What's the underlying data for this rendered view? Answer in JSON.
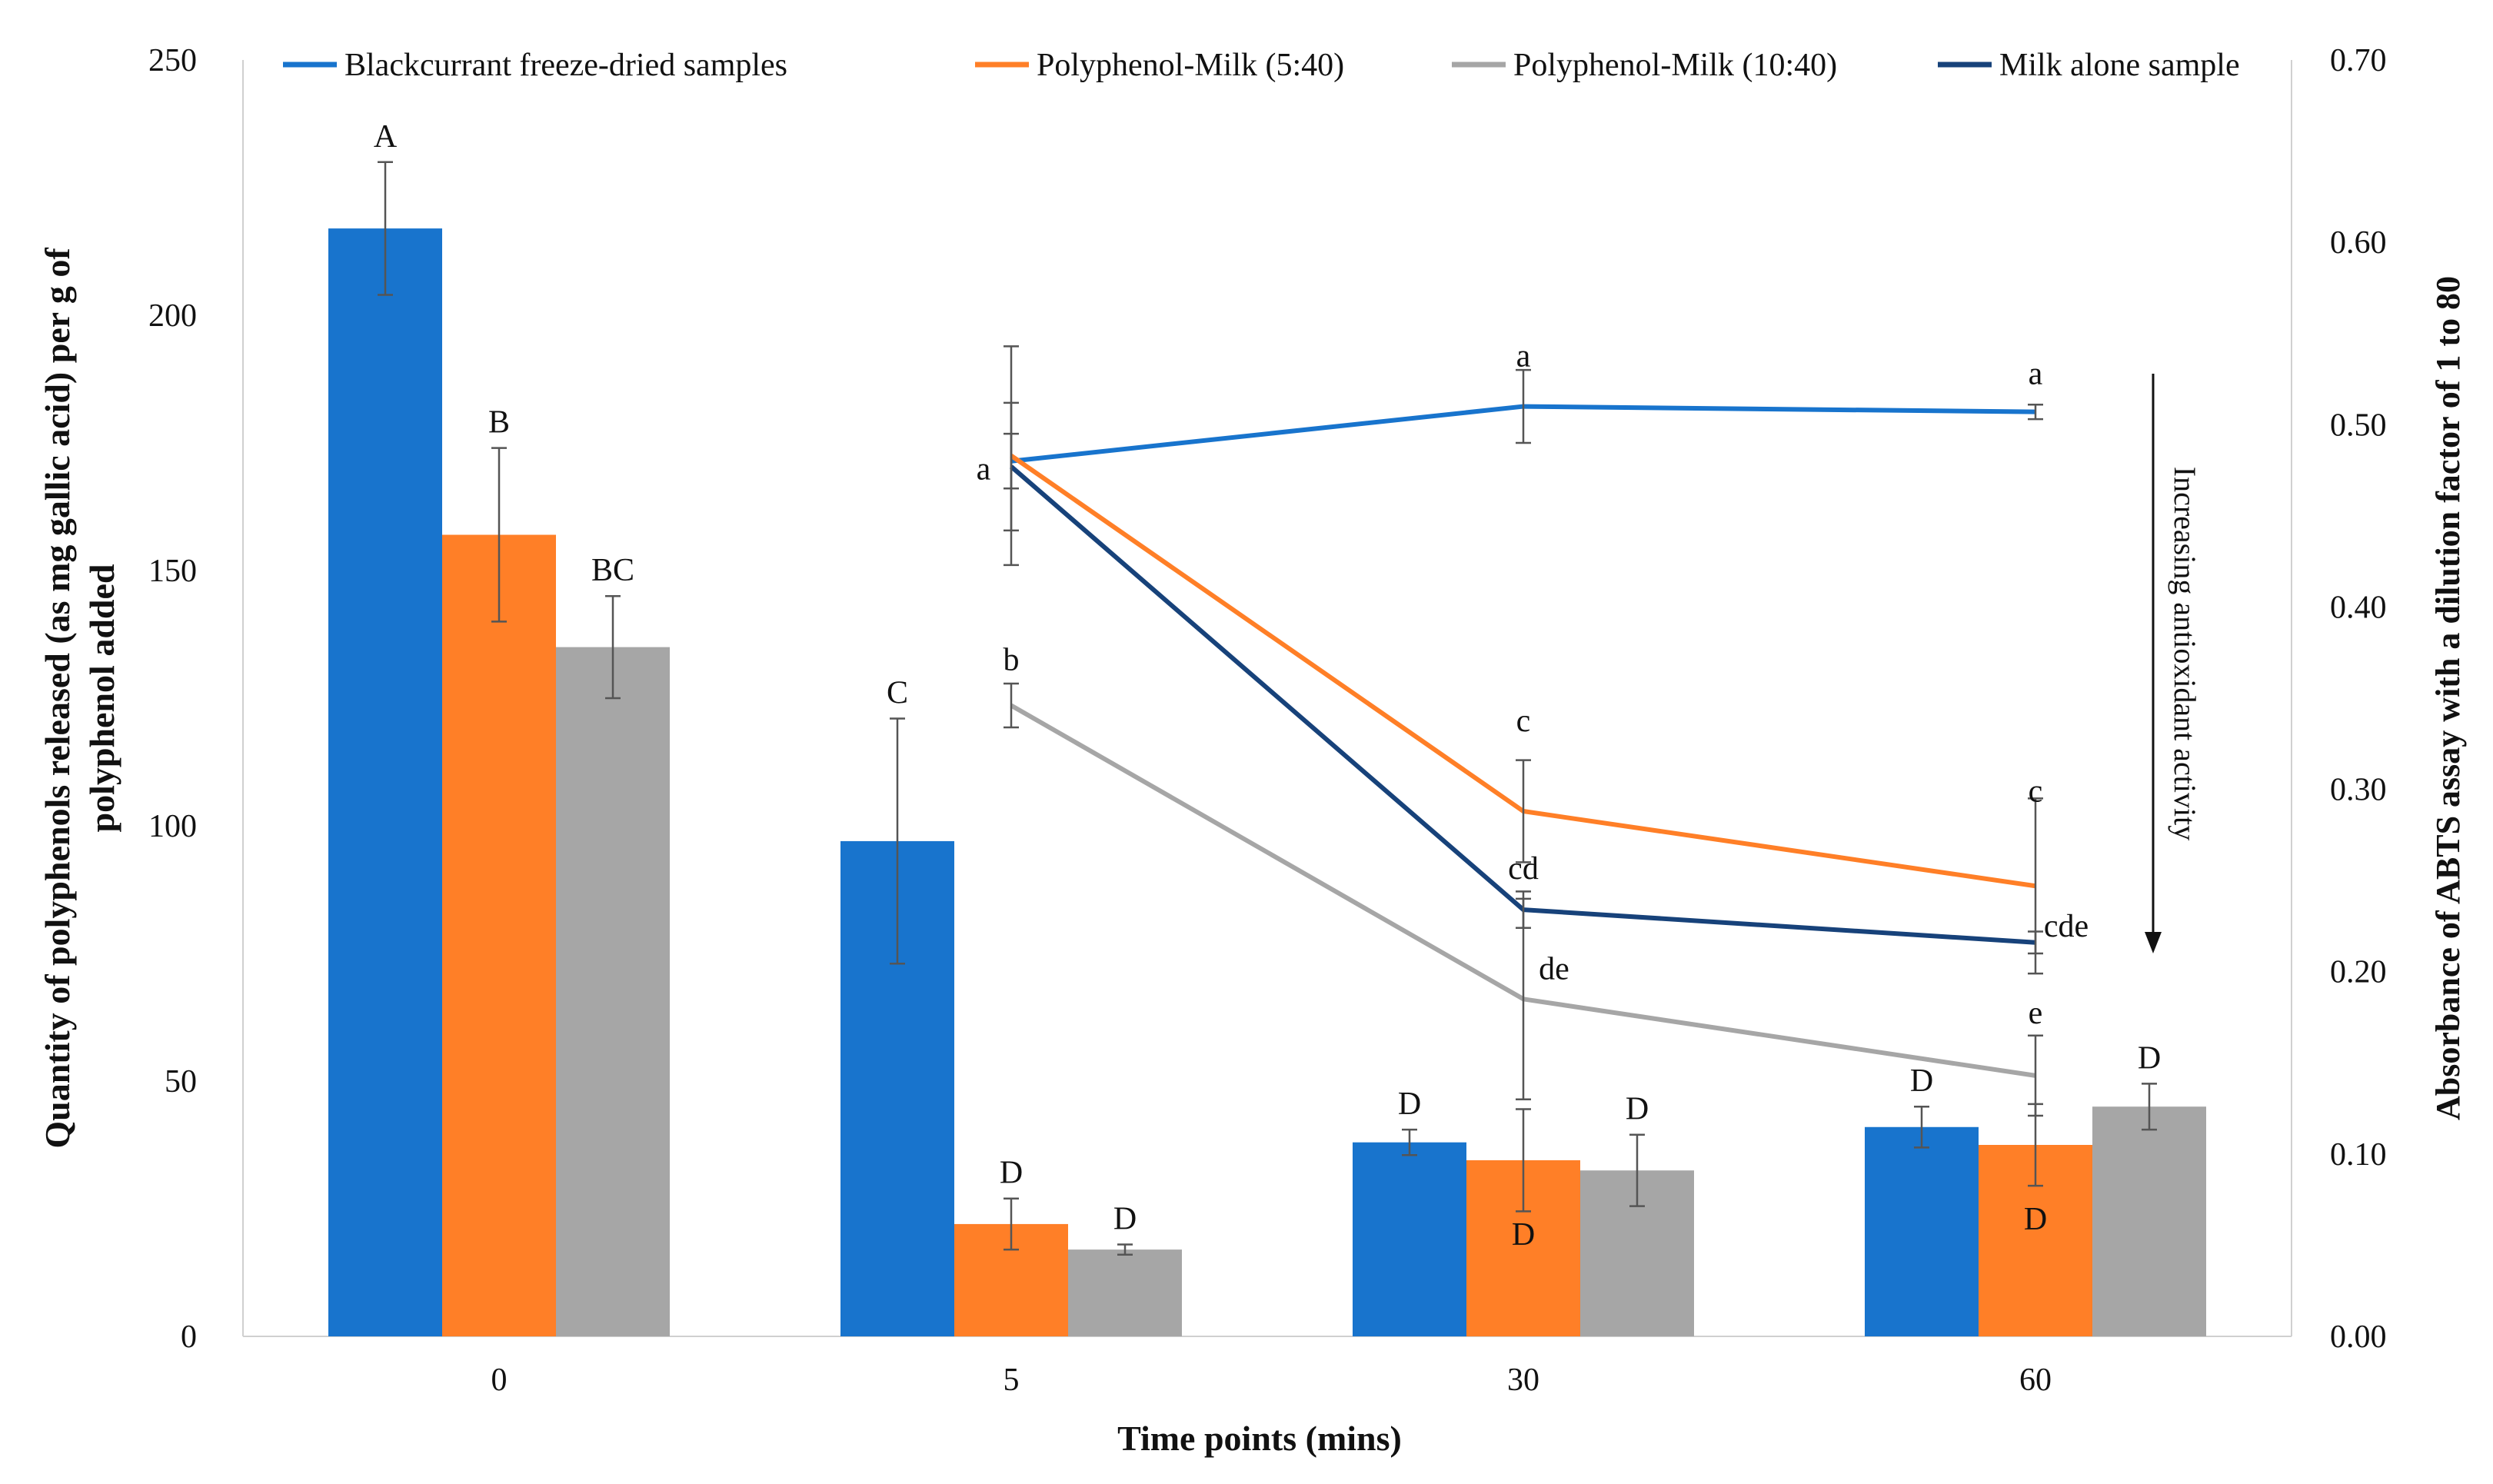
{
  "chart_data": {
    "type": "bar+line",
    "categories": [
      "0",
      "5",
      "30",
      "60"
    ],
    "xlabel": "Time points (mins)",
    "ylabel_left": "Quantity of polyphenols released (as mg gallic acid) per g of polyphenol added",
    "ylabel_left_lines": [
      "Quantity of polyphenols released (as mg gallic acid) per g of",
      "polyphenol added"
    ],
    "ylabel_right": "Absorbance of ABTS assay with a dilution factor of 1 to 80",
    "ylim_left": [
      0,
      250
    ],
    "yticks_left": [
      "0",
      "50",
      "100",
      "150",
      "200",
      "250"
    ],
    "ylim_right": [
      0,
      0.7
    ],
    "yticks_right": [
      "0.00",
      "0.10",
      "0.20",
      "0.30",
      "0.40",
      "0.50",
      "0.60",
      "0.70"
    ],
    "bar_series": [
      {
        "name": "Blackcurrant freeze-dried samples",
        "color": "#1874CD",
        "values": [
          217,
          97,
          38,
          41
        ],
        "errors": [
          13,
          24,
          2.5,
          4
        ],
        "labels": [
          "A",
          "C",
          "D",
          "D"
        ]
      },
      {
        "name": "Polyphenol-Milk (5:40)",
        "color": "#FF7F27",
        "values": [
          157,
          22,
          34.5,
          37.5
        ],
        "errors": [
          17,
          5,
          10,
          8
        ],
        "labels": [
          "B",
          "D",
          "D",
          "D"
        ]
      },
      {
        "name": "Polyphenol-Milk (10:40)",
        "color": "#A6A6A6",
        "values": [
          135,
          17,
          32.5,
          45
        ],
        "errors": [
          10,
          1,
          7,
          4.5
        ],
        "labels": [
          "BC",
          "D",
          "D",
          "D"
        ]
      }
    ],
    "line_series": [
      {
        "name": "Blackcurrant freeze-dried samples",
        "color": "#1874CD",
        "x": [
          "5",
          "30",
          "60"
        ],
        "values": [
          0.48,
          0.51,
          0.507
        ],
        "errors": [
          0.015,
          0.02,
          0.004
        ],
        "labels": [
          "a",
          "a",
          "a"
        ]
      },
      {
        "name": "Polyphenol-Milk (5:40)",
        "color": "#FF7F27",
        "x": [
          "5",
          "30",
          "60"
        ],
        "values": [
          0.483,
          0.288,
          0.247
        ],
        "errors": [
          0.06,
          0.028,
          0.048
        ],
        "labels": [
          "",
          "c",
          "c"
        ]
      },
      {
        "name": "Polyphenol-Milk (10:40)",
        "color": "#A6A6A6",
        "x": [
          "5",
          "30",
          "60"
        ],
        "values": [
          0.346,
          0.185,
          0.143
        ],
        "errors": [
          0.012,
          0.055,
          0.022
        ],
        "labels": [
          "b",
          "de",
          "e"
        ]
      },
      {
        "name": "Milk alone sample",
        "color": "#17427A",
        "x": [
          "5",
          "30",
          "60"
        ],
        "values": [
          0.477,
          0.234,
          0.216
        ],
        "errors": [
          0.035,
          0.01,
          0.006
        ],
        "labels": [
          "",
          "cd",
          "cde"
        ]
      }
    ],
    "legend": [
      "Blackcurrant freeze-dried samples",
      "Polyphenol-Milk (5:40)",
      "Polyphenol-Milk (10:40)",
      "Milk alone sample"
    ],
    "legend_colors": [
      "#1874CD",
      "#FF7F27",
      "#A6A6A6",
      "#17427A"
    ],
    "annotation": "Increasing antioxidant activity"
  }
}
